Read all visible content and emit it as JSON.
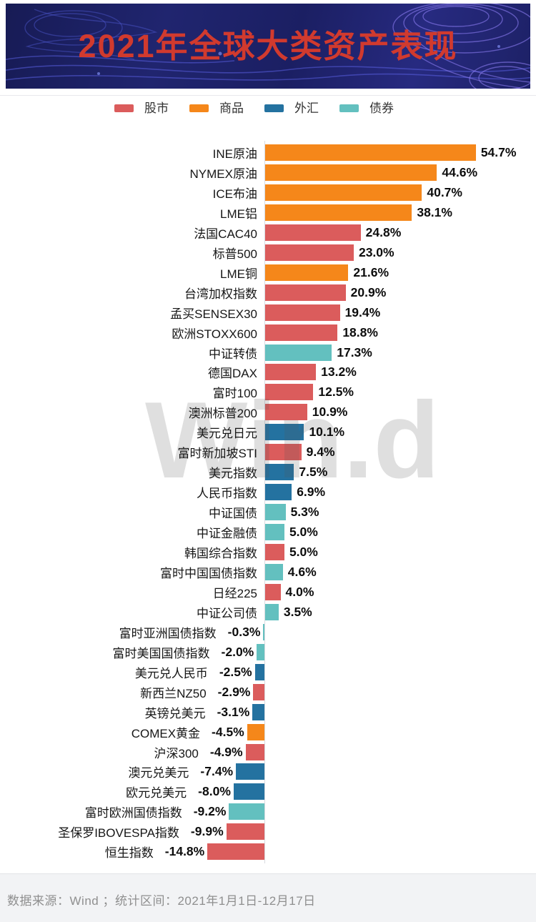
{
  "header": {
    "title": "2021年全球大类资产表现",
    "title_color": "#d13a2e",
    "background_color": "#1d2166"
  },
  "legend": [
    {
      "label": "股市",
      "color": "#db5c5c"
    },
    {
      "label": "商品",
      "color": "#f5871a"
    },
    {
      "label": "外汇",
      "color": "#2472a0"
    },
    {
      "label": "债券",
      "color": "#63c0bf"
    }
  ],
  "watermark": "Win.d",
  "chart_data": {
    "type": "bar",
    "orientation": "horizontal",
    "title": "2021年全球大类资产表现",
    "unit": "%",
    "legend_position": "top",
    "value_labels": "outside-end",
    "grid": false,
    "xlim": [
      -14.8,
      54.7
    ],
    "items": [
      {
        "name": "INE原油",
        "value": 54.7,
        "label": "54.7%",
        "category": "商品"
      },
      {
        "name": "NYMEX原油",
        "value": 44.6,
        "label": "44.6%",
        "category": "商品"
      },
      {
        "name": "ICE布油",
        "value": 40.7,
        "label": "40.7%",
        "category": "商品"
      },
      {
        "name": "LME铝",
        "value": 38.1,
        "label": "38.1%",
        "category": "商品"
      },
      {
        "name": "法国CAC40",
        "value": 24.8,
        "label": "24.8%",
        "category": "股市"
      },
      {
        "name": "标普500",
        "value": 23.0,
        "label": "23.0%",
        "category": "股市"
      },
      {
        "name": "LME铜",
        "value": 21.6,
        "label": "21.6%",
        "category": "商品"
      },
      {
        "name": "台湾加权指数",
        "value": 20.9,
        "label": "20.9%",
        "category": "股市"
      },
      {
        "name": "孟买SENSEX30",
        "value": 19.4,
        "label": "19.4%",
        "category": "股市"
      },
      {
        "name": "欧洲STOXX600",
        "value": 18.8,
        "label": "18.8%",
        "category": "股市"
      },
      {
        "name": "中证转债",
        "value": 17.3,
        "label": "17.3%",
        "category": "债券"
      },
      {
        "name": "德国DAX",
        "value": 13.2,
        "label": "13.2%",
        "category": "股市"
      },
      {
        "name": "富时100",
        "value": 12.5,
        "label": "12.5%",
        "category": "股市"
      },
      {
        "name": "澳洲标普200",
        "value": 10.9,
        "label": "10.9%",
        "category": "股市"
      },
      {
        "name": "美元兑日元",
        "value": 10.1,
        "label": "10.1%",
        "category": "外汇"
      },
      {
        "name": "富时新加坡STI",
        "value": 9.4,
        "label": "9.4%",
        "category": "股市"
      },
      {
        "name": "美元指数",
        "value": 7.5,
        "label": "7.5%",
        "category": "外汇"
      },
      {
        "name": "人民币指数",
        "value": 6.9,
        "label": "6.9%",
        "category": "外汇"
      },
      {
        "name": "中证国债",
        "value": 5.3,
        "label": "5.3%",
        "category": "债券"
      },
      {
        "name": "中证金融债",
        "value": 5.0,
        "label": "5.0%",
        "category": "债券"
      },
      {
        "name": "韩国综合指数",
        "value": 5.0,
        "label": "5.0%",
        "category": "股市"
      },
      {
        "name": "富时中国国债指数",
        "value": 4.6,
        "label": "4.6%",
        "category": "债券"
      },
      {
        "name": "日经225",
        "value": 4.0,
        "label": "4.0%",
        "category": "股市"
      },
      {
        "name": "中证公司债",
        "value": 3.5,
        "label": "3.5%",
        "category": "债券"
      },
      {
        "name": "富时亚洲国债指数",
        "value": -0.3,
        "label": "-0.3%",
        "category": "债券"
      },
      {
        "name": "富时美国国债指数",
        "value": -2.0,
        "label": "-2.0%",
        "category": "债券"
      },
      {
        "name": "美元兑人民币",
        "value": -2.5,
        "label": "-2.5%",
        "category": "外汇"
      },
      {
        "name": "新西兰NZ50",
        "value": -2.9,
        "label": "-2.9%",
        "category": "股市"
      },
      {
        "name": "英镑兑美元",
        "value": -3.1,
        "label": "-3.1%",
        "category": "外汇"
      },
      {
        "name": "COMEX黄金",
        "value": -4.5,
        "label": "-4.5%",
        "category": "商品"
      },
      {
        "name": "沪深300",
        "value": -4.9,
        "label": "-4.9%",
        "category": "股市"
      },
      {
        "name": "澳元兑美元",
        "value": -7.4,
        "label": "-7.4%",
        "category": "外汇"
      },
      {
        "name": "欧元兑美元",
        "value": -8.0,
        "label": "-8.0%",
        "category": "外汇"
      },
      {
        "name": "富时欧洲国债指数",
        "value": -9.2,
        "label": "-9.2%",
        "category": "债券"
      },
      {
        "name": "圣保罗IBOVESPA指数",
        "value": -9.9,
        "label": "-9.9%",
        "category": "股市"
      },
      {
        "name": "恒生指数",
        "value": -14.8,
        "label": "-14.8%",
        "category": "股市"
      }
    ]
  },
  "footer": {
    "source": "数据来源：Wind ；统计区间：2021年1月1日-12月17日"
  }
}
